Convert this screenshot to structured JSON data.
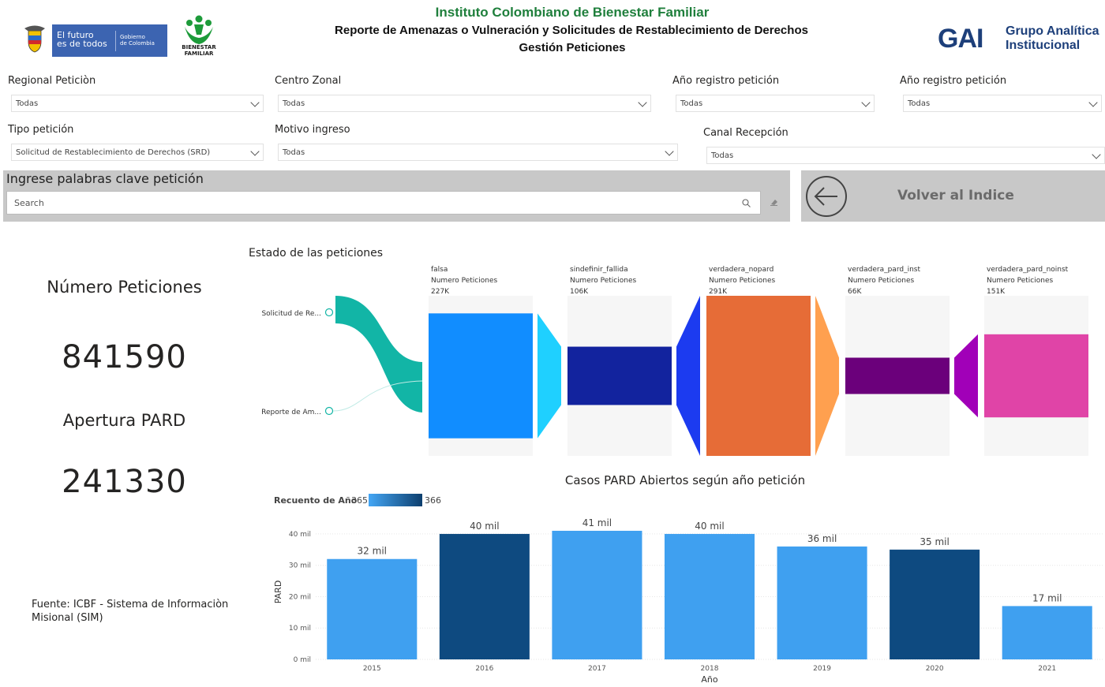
{
  "header": {
    "title": "Instituto Colombiano de Bienestar Familiar",
    "subtitle": "Reporte de Amenazas o Vulneración y Solicitudes de Restablecimiento de Derechos",
    "subtitle2": "Gestión Peticiones",
    "gov_logo_line1": "El futuro",
    "gov_logo_line2": "es de todos",
    "gov_logo_small1": "Gobierno",
    "gov_logo_small2": "de Colombia",
    "icbf_logo_line1": "BIENESTAR",
    "icbf_logo_line2": "FAMILIAR",
    "gai_mark": "GAI",
    "gai_line1": "Grupo Analítica",
    "gai_line2": "Institucional"
  },
  "filters": {
    "regional": {
      "label": "Regional Peticiòn",
      "value": "Todas"
    },
    "centro": {
      "label": "Centro Zonal",
      "value": "Todas"
    },
    "anio1": {
      "label": "Año registro petición",
      "value": "Todas"
    },
    "anio2": {
      "label": "Año registro petición",
      "value": "Todas"
    },
    "tipo": {
      "label": "Tipo petición",
      "value": "Solicitud de Restablecimiento de Derechos (SRD)"
    },
    "motivo": {
      "label": "Motivo ingreso",
      "value": "Todas"
    },
    "canal": {
      "label": "Canal Recepción",
      "value": "Todas"
    }
  },
  "search": {
    "title": "Ingrese palabras clave petición",
    "placeholder": "Search"
  },
  "back_button": {
    "label": "Volver al Indice"
  },
  "kpis": {
    "peticiones_label": "Número Peticiones",
    "peticiones_value": "841590",
    "pard_label": "Apertura PARD",
    "pard_value": "241330"
  },
  "fuente": "Fuente: ICBF - Sistema de Informaciòn Misional (SIM)",
  "decomp": {
    "title": "Estado de las peticiones",
    "roots": [
      "Solicitud de Re...",
      "Reporte de Am..."
    ],
    "measure_label": "Numero Peticiones",
    "colors": {
      "flow": "#12b5a6"
    },
    "levels": [
      {
        "name": "falsa",
        "value": "227K",
        "num": 227,
        "color": "#118dff",
        "connector": "#1fd0ff"
      },
      {
        "name": "sindefinir_fallida",
        "value": "106K",
        "num": 106,
        "color": "#12239e",
        "connector": "#1c3bf0"
      },
      {
        "name": "verdadera_nopard",
        "value": "291K",
        "num": 291,
        "color": "#e66c37",
        "connector": "#ffa04f"
      },
      {
        "name": "verdadera_pard_inst",
        "value": "66K",
        "num": 66,
        "color": "#6b007b",
        "connector": "#a100b8"
      },
      {
        "name": "verdadera_pard_noinst",
        "value": "151K",
        "num": 151,
        "color": "#e044a7",
        "connector": null
      }
    ]
  },
  "chart_data": {
    "type": "bar",
    "title": "Casos PARD Abiertos según año petición",
    "xlabel": "Año",
    "ylabel": "PARD",
    "categories": [
      "2015",
      "2016",
      "2017",
      "2018",
      "2019",
      "2020",
      "2021"
    ],
    "values": [
      32,
      40,
      41,
      40,
      36,
      35,
      17
    ],
    "value_labels": [
      "32 mil",
      "40 mil",
      "41 mil",
      "40 mil",
      "36 mil",
      "35 mil",
      "17 mil"
    ],
    "ylim": [
      0,
      43
    ],
    "yticks": [
      0,
      10,
      20,
      30,
      40
    ],
    "ytick_labels": [
      "0 mil",
      "10 mil",
      "20 mil",
      "30 mil",
      "40 mil"
    ],
    "color_legend": {
      "title": "Recuento de Año",
      "min": "365",
      "max": "366"
    },
    "bar_colors": [
      "#3fa0f0",
      "#0e4a80",
      "#3fa0f0",
      "#3fa0f0",
      "#3fa0f0",
      "#0e4a80",
      "#3fa0f0"
    ],
    "grid": true
  }
}
